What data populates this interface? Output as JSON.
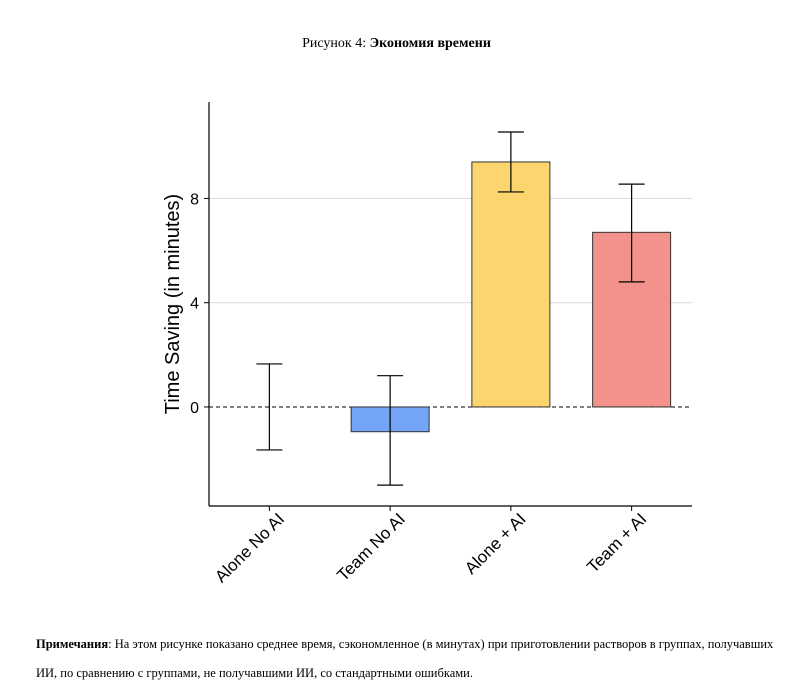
{
  "figure": {
    "caption_prefix": "Рисунок 4:",
    "caption_title": "Экономия времени"
  },
  "note": {
    "label": "Примечания",
    "text": ": На этом рисунке показано среднее время, сэкономленное (в минутах) при приготовлении растворов в группах, получавших ИИ, по сравнению с группами, не получавшими ИИ, со стандартными ошибками."
  },
  "chart_data": {
    "type": "bar",
    "ylabel": "Time Saving (in minutes)",
    "xlabel": "",
    "categories": [
      "Alone No AI",
      "Team No AI",
      "Alone + AI",
      "Team + AI"
    ],
    "values": [
      0.0,
      -0.95,
      9.4,
      6.7
    ],
    "error_low": [
      -1.65,
      -3.0,
      8.25,
      4.8
    ],
    "error_high": [
      1.65,
      1.2,
      10.55,
      8.55
    ],
    "colors": [
      "#ffffff",
      "#74a4f5",
      "#fdd56e",
      "#f2928a"
    ],
    "ylim": [
      -3.8,
      11.7
    ],
    "yticks": [
      0,
      4,
      8
    ],
    "reference_line": 0,
    "grid": "horizontal"
  }
}
